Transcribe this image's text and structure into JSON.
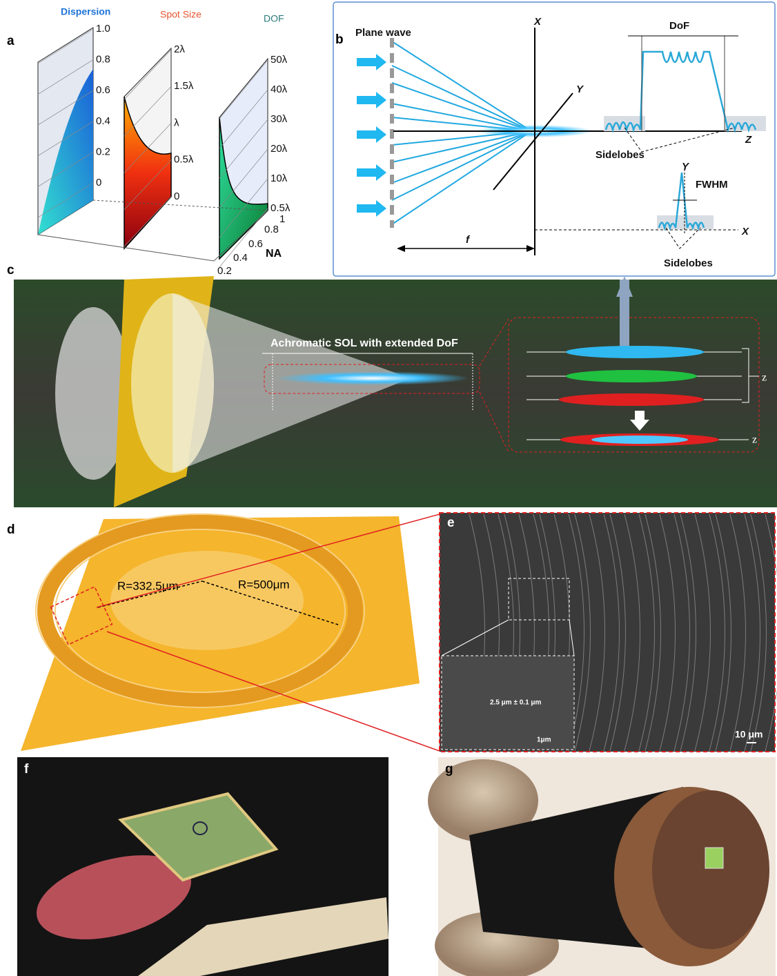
{
  "panels": {
    "a": {
      "label": "a",
      "titles": [
        "Dispersion",
        "Spot Size",
        "DOF"
      ],
      "dispersion_ticks": [
        "1.0",
        "0.8",
        "0.6",
        "0.4",
        "0.2",
        "0"
      ],
      "spot_ticks": [
        "2λ",
        "1.5λ",
        "λ",
        "0.5λ",
        "0"
      ],
      "dof_ticks": [
        "50λ",
        "40λ",
        "30λ",
        "20λ",
        "10λ",
        "0.5λ"
      ],
      "na_ticks": [
        "0.2",
        "0.4",
        "0.6",
        "0.8",
        "1"
      ],
      "na_label": "NA"
    },
    "b": {
      "label": "b",
      "plane_wave": "Plane wave",
      "axis_x": "X",
      "axis_y": "Y",
      "axis_z": "Z",
      "dof": "DoF",
      "sidelobes": "Sidelobes",
      "profile_y": "Y",
      "fwhm": "FWHM",
      "profile_x": "X",
      "sidelobes_lower": "Sidelobes",
      "focal": "f"
    },
    "c": {
      "label": "c",
      "caption": "Achromatic SOL with extended DoF",
      "z_upper": "z",
      "z_lower": "z"
    },
    "d": {
      "label": "d",
      "inner_radius": "R=332.5μm",
      "outer_radius": "R=500μm"
    },
    "e": {
      "label": "e",
      "period": "2.5 μm ± 0.1 μm",
      "inset_scale": "1μm",
      "scale": "10 μm"
    },
    "f": {
      "label": "f"
    },
    "g": {
      "label": "g"
    }
  }
}
